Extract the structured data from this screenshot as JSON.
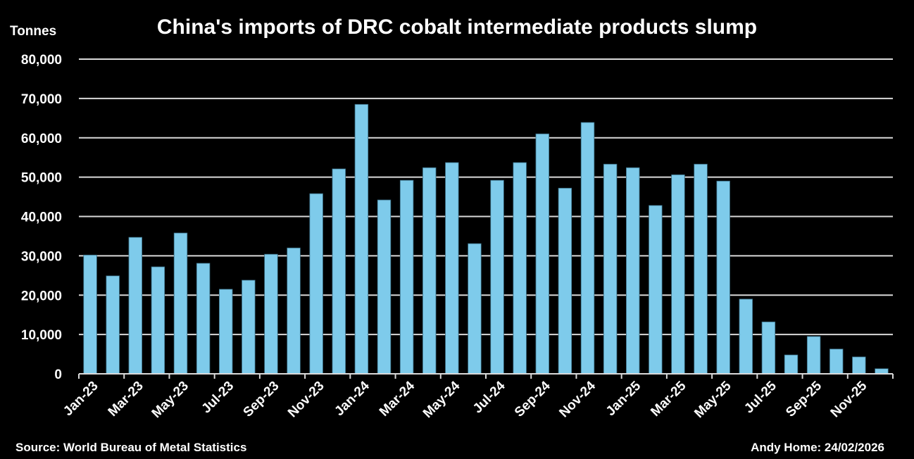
{
  "chart_data": {
    "type": "bar",
    "title": "China's imports of DRC cobalt intermediate products slump",
    "ylabel": "Tonnes",
    "xlabel": "",
    "ylim": [
      0,
      80000
    ],
    "yticks": [
      0,
      10000,
      20000,
      30000,
      40000,
      50000,
      60000,
      70000,
      80000
    ],
    "ytick_labels": [
      "0",
      "10,000",
      "20,000",
      "30,000",
      "40,000",
      "50,000",
      "60,000",
      "70,000",
      "80,000"
    ],
    "grid": true,
    "bar_color": "#7ecbeb",
    "categories": [
      "Jan-23",
      "Feb-23",
      "Mar-23",
      "Apr-23",
      "May-23",
      "Jun-23",
      "Jul-23",
      "Aug-23",
      "Sep-23",
      "Oct-23",
      "Nov-23",
      "Dec-23",
      "Jan-24",
      "Feb-24",
      "Mar-24",
      "Apr-24",
      "May-24",
      "Jun-24",
      "Jul-24",
      "Aug-24",
      "Sep-24",
      "Oct-24",
      "Nov-24",
      "Dec-24",
      "Jan-25",
      "Feb-25",
      "Mar-25",
      "Apr-25",
      "May-25",
      "Jun-25",
      "Jul-25",
      "Aug-25",
      "Sep-25",
      "Oct-25",
      "Nov-25",
      "Dec-25"
    ],
    "xtick_labels": [
      "Jan-23",
      "Mar-23",
      "May-23",
      "Jul-23",
      "Sep-23",
      "Nov-23",
      "Jan-24",
      "Mar-24",
      "May-24",
      "Jul-24",
      "Sep-24",
      "Nov-24",
      "Jan-25",
      "Mar-25",
      "May-25",
      "Jul-25",
      "Sep-25",
      "Nov-25"
    ],
    "values": [
      30200,
      24900,
      34700,
      27200,
      35800,
      28100,
      21500,
      23800,
      30400,
      32000,
      45800,
      52100,
      68500,
      44200,
      49200,
      52400,
      53700,
      33100,
      49200,
      53700,
      61000,
      47200,
      63900,
      53300,
      52400,
      42800,
      50600,
      53300,
      49000,
      19000,
      13200,
      4800,
      9500,
      6300,
      4300,
      1300
    ]
  },
  "footer": {
    "source": "Source: World Bureau of Metal Statistics",
    "credit": "Andy Home: 24/02/2026"
  }
}
